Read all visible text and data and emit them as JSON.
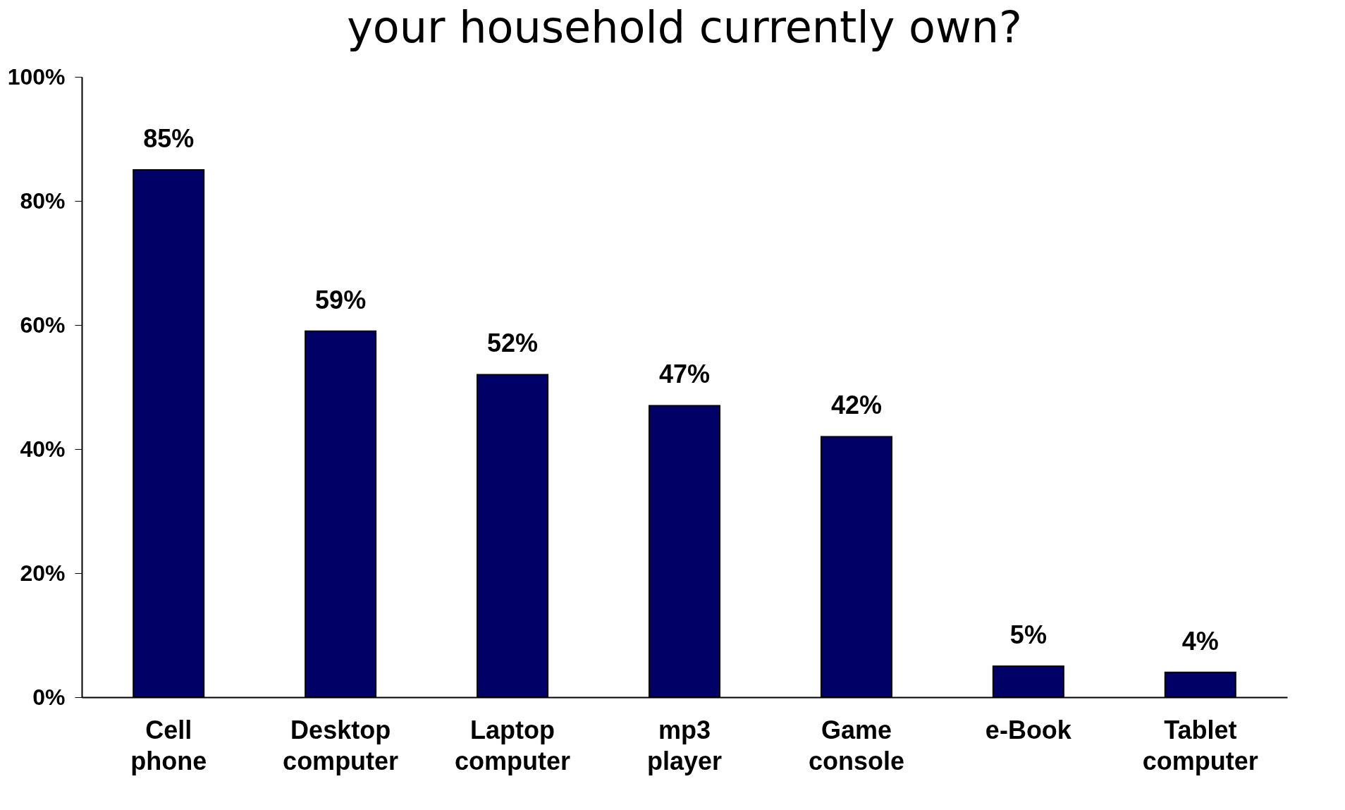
{
  "chart_data": {
    "type": "bar",
    "title": "your household currently own?",
    "categories": [
      "Cell phone",
      "Desktop computer",
      "Laptop computer",
      "mp3 player",
      "Game console",
      "e-Book",
      "Tablet computer"
    ],
    "values": [
      85,
      59,
      52,
      47,
      42,
      5,
      4
    ],
    "value_labels": [
      "85%",
      "59%",
      "52%",
      "47%",
      "42%",
      "5%",
      "4%"
    ],
    "color": "#000066",
    "ylim": [
      0,
      100
    ],
    "yticks": [
      {
        "value": 0,
        "label": "0%"
      },
      {
        "value": 20,
        "label": "20%"
      },
      {
        "value": 40,
        "label": "40%"
      },
      {
        "value": 60,
        "label": "60%"
      },
      {
        "value": 80,
        "label": "80%"
      },
      {
        "value": 100,
        "label": "100%"
      }
    ],
    "grid": false
  }
}
